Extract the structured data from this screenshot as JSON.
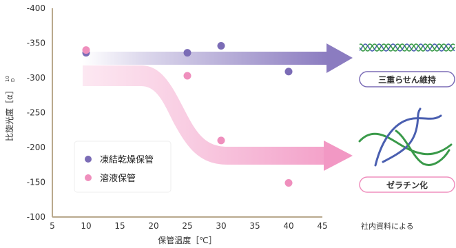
{
  "chart_data": {
    "type": "scatter",
    "xlabel": "保管温度［℃］",
    "ylabel": "比旋光度［α］",
    "ylabel_sup": "10",
    "ylabel_sub": "D",
    "xlim": [
      5,
      45
    ],
    "ylim": [
      -100,
      -400
    ],
    "x_ticks": [
      5,
      10,
      15,
      20,
      25,
      30,
      35,
      40,
      45
    ],
    "y_ticks": [
      -100,
      -150,
      -200,
      -250,
      -300,
      -350,
      -400
    ],
    "series": [
      {
        "name": "凍結乾燥保管",
        "color": "#7b6cb6",
        "points": [
          {
            "x": 10,
            "y": -336
          },
          {
            "x": 25,
            "y": -336
          },
          {
            "x": 30,
            "y": -346
          },
          {
            "x": 40,
            "y": -309
          }
        ]
      },
      {
        "name": "溶液保管",
        "color": "#ef8fbd",
        "points": [
          {
            "x": 10,
            "y": -340
          },
          {
            "x": 25,
            "y": -303
          },
          {
            "x": 30,
            "y": -210
          },
          {
            "x": 40,
            "y": -149
          }
        ]
      }
    ],
    "legend_position": "lower-left",
    "grid": false
  },
  "annotations": {
    "triple_helix_label": "三重らせん維持",
    "gelatin_label": "ゼラチン化",
    "source_note": "社内資料による",
    "helix_icon": "triple-helix-icon",
    "gelatin_icon": "random-coil-icon",
    "colors": {
      "purple_arrow": "#8b7cc0",
      "pink_arrow": "#f298c4",
      "helix_green": "#3a9a4a",
      "helix_blue": "#4a5fb0"
    }
  }
}
